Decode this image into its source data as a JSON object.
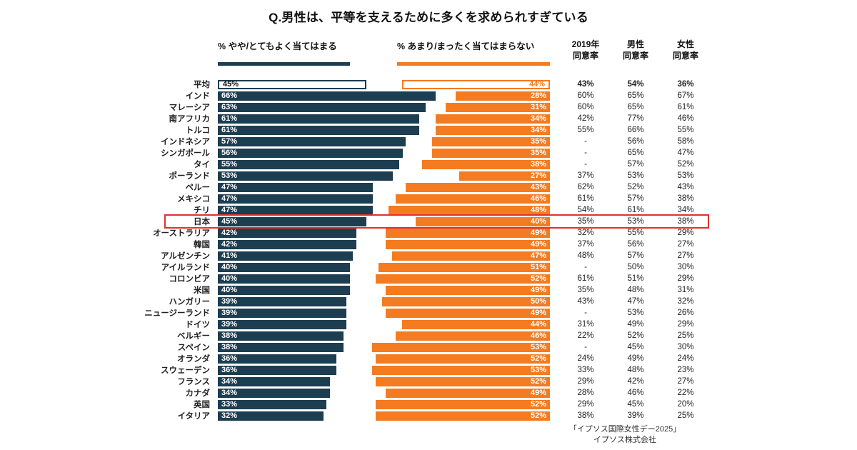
{
  "title": "Q.男性は、平等を支えるために多くを求められすぎている",
  "footer": {
    "line1": "「イプソス国際女性デー2025」",
    "line2": "イプソス株式会社"
  },
  "colors": {
    "agree_navy": "#1d3d51",
    "disagree_orange": "#f47b20",
    "highlight_red": "#e03131"
  },
  "chart_data": {
    "type": "bar",
    "title": "Q.男性は、平等を支えるために多くを求められすぎている",
    "legend_left": "% やや/とてもよく当てはまる",
    "legend_right": "% あまり/まったく当てはまらない",
    "columns": [
      {
        "line1": "2019年",
        "line2": "同意率"
      },
      {
        "line1": "男性",
        "line2": "同意率"
      },
      {
        "line1": "女性",
        "line2": "同意率"
      }
    ],
    "x_max": 100,
    "legend_position": "top",
    "rows": [
      {
        "label": "平均",
        "agree": 45,
        "disagree": 44,
        "y2019": "43%",
        "male": "54%",
        "female": "36%",
        "is_average": true
      },
      {
        "label": "インド",
        "agree": 66,
        "disagree": 28,
        "y2019": "60%",
        "male": "65%",
        "female": "67%"
      },
      {
        "label": "マレーシア",
        "agree": 63,
        "disagree": 31,
        "y2019": "60%",
        "male": "65%",
        "female": "61%"
      },
      {
        "label": "南アフリカ",
        "agree": 61,
        "disagree": 34,
        "y2019": "42%",
        "male": "77%",
        "female": "46%"
      },
      {
        "label": "トルコ",
        "agree": 61,
        "disagree": 34,
        "y2019": "55%",
        "male": "66%",
        "female": "55%"
      },
      {
        "label": "インドネシア",
        "agree": 57,
        "disagree": 35,
        "y2019": "-",
        "male": "56%",
        "female": "58%"
      },
      {
        "label": "シンガポール",
        "agree": 56,
        "disagree": 35,
        "y2019": "-",
        "male": "65%",
        "female": "47%"
      },
      {
        "label": "タイ",
        "agree": 55,
        "disagree": 38,
        "y2019": "-",
        "male": "57%",
        "female": "52%"
      },
      {
        "label": "ポーランド",
        "agree": 53,
        "disagree": 27,
        "y2019": "37%",
        "male": "53%",
        "female": "53%"
      },
      {
        "label": "ペルー",
        "agree": 47,
        "disagree": 43,
        "y2019": "62%",
        "male": "52%",
        "female": "43%"
      },
      {
        "label": "メキシコ",
        "agree": 47,
        "disagree": 46,
        "y2019": "61%",
        "male": "57%",
        "female": "38%"
      },
      {
        "label": "チリ",
        "agree": 47,
        "disagree": 48,
        "y2019": "54%",
        "male": "61%",
        "female": "34%"
      },
      {
        "label": "日本",
        "agree": 45,
        "disagree": 40,
        "y2019": "35%",
        "male": "53%",
        "female": "38%",
        "highlight": true
      },
      {
        "label": "オーストラリア",
        "agree": 42,
        "disagree": 49,
        "y2019": "32%",
        "male": "55%",
        "female": "29%"
      },
      {
        "label": "韓国",
        "agree": 42,
        "disagree": 49,
        "y2019": "37%",
        "male": "56%",
        "female": "27%"
      },
      {
        "label": "アルゼンチン",
        "agree": 41,
        "disagree": 47,
        "y2019": "48%",
        "male": "57%",
        "female": "27%"
      },
      {
        "label": "アイルランド",
        "agree": 40,
        "disagree": 51,
        "y2019": "-",
        "male": "50%",
        "female": "30%"
      },
      {
        "label": "コロンビア",
        "agree": 40,
        "disagree": 52,
        "y2019": "61%",
        "male": "51%",
        "female": "29%"
      },
      {
        "label": "米国",
        "agree": 40,
        "disagree": 49,
        "y2019": "35%",
        "male": "48%",
        "female": "31%"
      },
      {
        "label": "ハンガリー",
        "agree": 39,
        "disagree": 50,
        "y2019": "43%",
        "male": "47%",
        "female": "32%"
      },
      {
        "label": "ニュージーランド",
        "agree": 39,
        "disagree": 49,
        "y2019": "-",
        "male": "53%",
        "female": "26%"
      },
      {
        "label": "ドイツ",
        "agree": 39,
        "disagree": 44,
        "y2019": "31%",
        "male": "49%",
        "female": "29%"
      },
      {
        "label": "ベルギー",
        "agree": 38,
        "disagree": 46,
        "y2019": "22%",
        "male": "52%",
        "female": "25%"
      },
      {
        "label": "スペイン",
        "agree": 38,
        "disagree": 53,
        "y2019": "-",
        "male": "45%",
        "female": "30%"
      },
      {
        "label": "オランダ",
        "agree": 36,
        "disagree": 52,
        "y2019": "24%",
        "male": "49%",
        "female": "24%"
      },
      {
        "label": "スウェーデン",
        "agree": 36,
        "disagree": 53,
        "y2019": "33%",
        "male": "48%",
        "female": "23%"
      },
      {
        "label": "フランス",
        "agree": 34,
        "disagree": 52,
        "y2019": "29%",
        "male": "42%",
        "female": "27%"
      },
      {
        "label": "カナダ",
        "agree": 34,
        "disagree": 49,
        "y2019": "28%",
        "male": "46%",
        "female": "22%"
      },
      {
        "label": "英国",
        "agree": 33,
        "disagree": 52,
        "y2019": "29%",
        "male": "45%",
        "female": "20%"
      },
      {
        "label": "イタリア",
        "agree": 32,
        "disagree": 52,
        "y2019": "38%",
        "male": "39%",
        "female": "25%"
      }
    ]
  }
}
